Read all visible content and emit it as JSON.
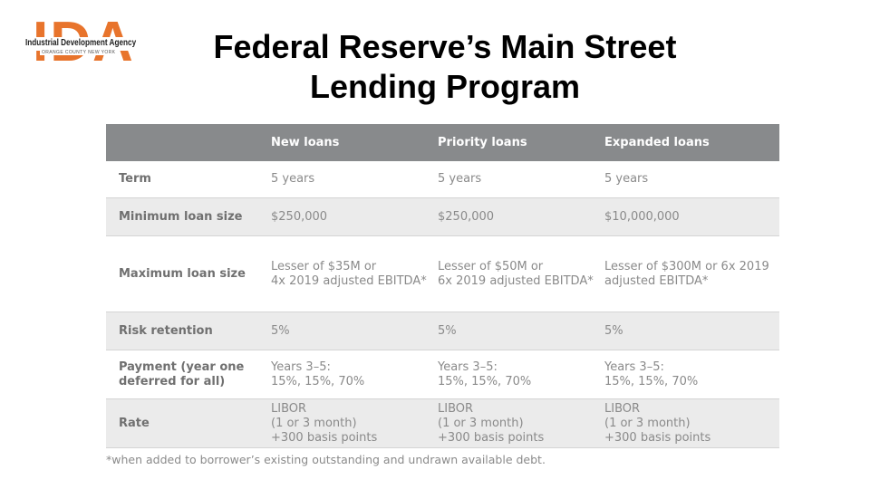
{
  "logo": {
    "letters": "IDA",
    "name": "Industrial Development Agency",
    "subtitle": "ORANGE COUNTY NEW YORK",
    "color": "#e8742c"
  },
  "title": {
    "line1": "Federal Reserve’s Main Street",
    "line2": "Lending Program"
  },
  "table": {
    "headers": [
      "",
      "New loans",
      "Priority loans",
      "Expanded loans"
    ],
    "rows": [
      {
        "label": "Term",
        "values": [
          "5 years",
          "5 years",
          "5 years"
        ]
      },
      {
        "label": "Minimum loan size",
        "values": [
          "$250,000",
          "$250,000",
          "$10,000,000"
        ]
      },
      {
        "label": "Maximum loan size",
        "values": [
          "Lesser of $35M or 4x 2019 adjusted EBITDA*",
          "Lesser of $50M or 6x 2019 adjusted EBITDA*",
          "Lesser of $300M or 6x 2019 adjusted EBITDA*"
        ],
        "values_lines": [
          [
            "Lesser of $35M or",
            "4x 2019 adjusted EBITDA*"
          ],
          [
            "Lesser of $50M or",
            "6x 2019 adjusted EBITDA*"
          ],
          [
            "Lesser of $300M or 6x 2019",
            "adjusted EBITDA*"
          ]
        ]
      },
      {
        "label": "Risk retention",
        "values": [
          "5%",
          "5%",
          "5%"
        ]
      },
      {
        "label_lines": [
          "Payment (year one",
          "deferred for all)"
        ],
        "values_lines": [
          [
            "Years 3–5:",
            "15%, 15%, 70%"
          ],
          [
            "Years 3–5:",
            "15%, 15%, 70%"
          ],
          [
            "Years 3–5:",
            "15%, 15%, 70%"
          ]
        ]
      },
      {
        "label": "Rate",
        "values_lines": [
          [
            "LIBOR",
            "(1 or 3 month)",
            "+300 basis points"
          ],
          [
            "LIBOR",
            "(1 or 3 month)",
            "+300 basis points"
          ],
          [
            "LIBOR",
            "(1 or 3 month)",
            "+300 basis points"
          ]
        ]
      }
    ],
    "header_bg": "#888a8c",
    "shade_bg": "#ebebeb"
  },
  "footnote": "*when added to borrower’s existing outstanding and undrawn available debt."
}
